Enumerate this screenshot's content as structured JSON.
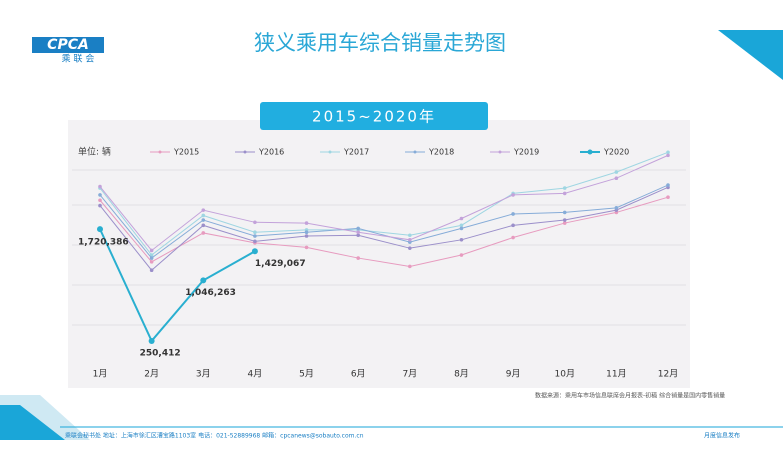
{
  "header": {
    "logo": "CPCA",
    "logo_sub": "乘 联 会",
    "title": "狭义乘用车综合销量走势图"
  },
  "chart_data": {
    "type": "line",
    "title": "2015~2020年",
    "y_label": "单位: 辆",
    "categories": [
      "1月",
      "2月",
      "3月",
      "4月",
      "5月",
      "6月",
      "7月",
      "8月",
      "9月",
      "10月",
      "11月",
      "12月"
    ],
    "ylim": [
      0,
      2800000
    ],
    "series": [
      {
        "name": "Y2015",
        "color": "#e79bbf",
        "values": [
          2100000,
          1290000,
          1670000,
          1540000,
          1480000,
          1340000,
          1230000,
          1380000,
          1610000,
          1800000,
          1940000,
          2140000
        ]
      },
      {
        "name": "Y2016",
        "color": "#9b8fca",
        "values": [
          2030000,
          1180000,
          1770000,
          1560000,
          1630000,
          1640000,
          1470000,
          1580000,
          1770000,
          1840000,
          1970000,
          2270000
        ]
      },
      {
        "name": "Y2017",
        "color": "#9fd6e2",
        "values": [
          2260000,
          1380000,
          1900000,
          1680000,
          1710000,
          1710000,
          1640000,
          1770000,
          2190000,
          2260000,
          2470000,
          2730000
        ]
      },
      {
        "name": "Y2018",
        "color": "#86acd8",
        "values": [
          2170000,
          1340000,
          1840000,
          1630000,
          1680000,
          1730000,
          1550000,
          1730000,
          1920000,
          1940000,
          2000000,
          2300000
        ]
      },
      {
        "name": "Y2019",
        "color": "#c3a2da",
        "values": [
          2280000,
          1440000,
          1970000,
          1810000,
          1800000,
          1680000,
          1580000,
          1860000,
          2170000,
          2190000,
          2390000,
          2690000
        ]
      },
      {
        "name": "Y2020",
        "color": "#29afd0",
        "values": [
          1720386,
          250412,
          1046263,
          1429067,
          null,
          null,
          null,
          null,
          null,
          null,
          null,
          null
        ],
        "value_labels": [
          "1,720,386",
          "250,412",
          "1,046,263",
          "1,429,067",
          null,
          null,
          null,
          null,
          null,
          null,
          null,
          null
        ]
      }
    ],
    "annotation": "数据来源：乘用车市场信息联席会月报表-初稿 综合销量是国内零售销量"
  },
  "footer": {
    "address": "乘联会秘书处 地址：上海市徐汇区漕宝路1103室 电话：021-52889968 邮箱：cpcanews@sobauto.com.cn",
    "right": "月度信息发布"
  }
}
